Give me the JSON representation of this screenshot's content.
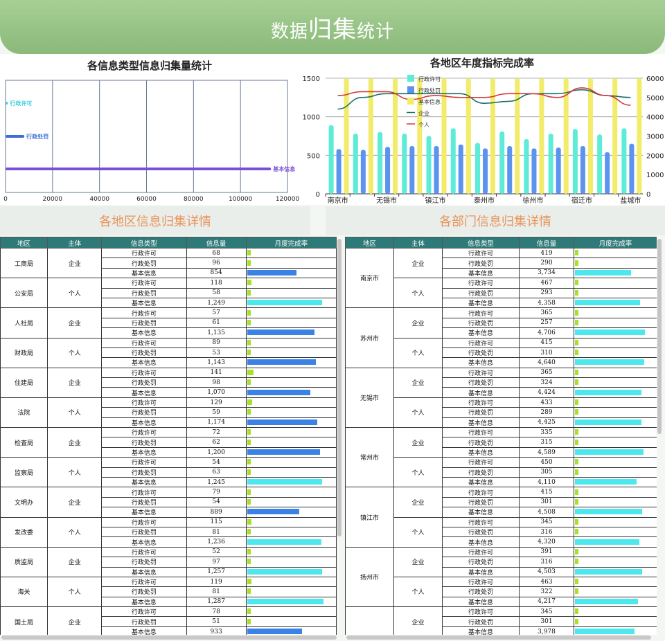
{
  "header": {
    "title_a": "数据",
    "title_b": "归集",
    "title_c": "统计"
  },
  "left_chart": {
    "title": "各信息类型信息归集量统计",
    "chart_data": {
      "type": "bar",
      "orientation": "horizontal",
      "categories": [
        "行政许可",
        "行政处罚",
        "基本信息"
      ],
      "values": [
        1000,
        8000,
        113000
      ],
      "colors": [
        "#3fd0e0",
        "#3a6fd6",
        "#7a4fd8"
      ],
      "x_ticks": [
        "0",
        "20000",
        "40000",
        "60000",
        "80000",
        "100000",
        "120000"
      ],
      "xlim": [
        0,
        120000
      ]
    }
  },
  "right_chart": {
    "title": "各地区年度指标完成率",
    "chart_data": {
      "type": "bar",
      "categories": [
        "南京市",
        "",
        "无锡市",
        "",
        "镇江市",
        "",
        "泰州市",
        "",
        "徐州市",
        "",
        "宿迁市",
        "",
        "盐城市"
      ],
      "x_labels": [
        "南京市",
        "无锡市",
        "镇江市",
        "泰州市",
        "徐州市",
        "宿迁市",
        "盐城市"
      ],
      "series": [
        {
          "name": "行政许可",
          "kind": "bar",
          "axis": "left",
          "color": "#5cecd8",
          "values": [
            890,
            780,
            800,
            780,
            750,
            850,
            660,
            810,
            710,
            780,
            840,
            770,
            850
          ]
        },
        {
          "name": "行政处罚",
          "kind": "bar",
          "axis": "left",
          "color": "#5b93ef",
          "values": [
            580,
            570,
            610,
            620,
            620,
            640,
            590,
            620,
            590,
            600,
            620,
            540,
            650
          ]
        },
        {
          "name": "基本信息",
          "kind": "bar",
          "axis": "right",
          "color": "#f2ec6a",
          "values": [
            6000,
            6000,
            6000,
            6000,
            6000,
            6000,
            6000,
            6000,
            6000,
            6000,
            6000,
            6000,
            6000
          ]
        },
        {
          "name": "企业",
          "kind": "line",
          "axis": "right",
          "color": "#1f6e6c",
          "values": [
            4400,
            5000,
            5200,
            5200,
            5200,
            5200,
            4700,
            4800,
            5200,
            5200,
            5400,
            5100,
            5000
          ]
        },
        {
          "name": "个人",
          "kind": "line",
          "axis": "right",
          "color": "#d43b3b",
          "values": [
            5100,
            5300,
            5300,
            4900,
            5100,
            5000,
            5000,
            5200,
            5200,
            5000,
            5500,
            5100,
            4600
          ]
        }
      ],
      "left_ticks": [
        "0",
        "500",
        "1000",
        "1500"
      ],
      "right_ticks": [
        "0",
        "1000",
        "2000",
        "3000",
        "4000",
        "5000",
        "6000"
      ],
      "ylim_left": [
        0,
        1500
      ],
      "ylim_right": [
        0,
        6000
      ],
      "legend": "top-left"
    }
  },
  "sections": {
    "left": "各地区信息归集详情",
    "right": "各部门信息归集详情"
  },
  "table_headers": [
    "地区",
    "主体",
    "信息类型",
    "信息量",
    "月度完成率"
  ],
  "left_table": [
    {
      "region": "工商局",
      "subject": "企业",
      "rows": [
        [
          "行政许可",
          "68",
          0.03
        ],
        [
          "行政处罚",
          "96",
          0.04
        ],
        [
          "基本信息",
          "854",
          0.65
        ]
      ]
    },
    {
      "region": "公安局",
      "subject": "个人",
      "rows": [
        [
          "行政许可",
          "118",
          0.06
        ],
        [
          "行政处罚",
          "58",
          0.02
        ],
        [
          "基本信息",
          "1,249",
          0.98
        ]
      ]
    },
    {
      "region": "人社局",
      "subject": "企业",
      "rows": [
        [
          "行政许可",
          "57",
          0.02
        ],
        [
          "行政处罚",
          "61",
          0.03
        ],
        [
          "基本信息",
          "1,135",
          0.88
        ]
      ]
    },
    {
      "region": "财政局",
      "subject": "个人",
      "rows": [
        [
          "行政许可",
          "89",
          0.04
        ],
        [
          "行政处罚",
          "53",
          0.02
        ],
        [
          "基本信息",
          "1,143",
          0.9
        ]
      ]
    },
    {
      "region": "住建局",
      "subject": "企业",
      "rows": [
        [
          "行政许可",
          "141",
          0.08
        ],
        [
          "行政处罚",
          "98",
          0.04
        ],
        [
          "基本信息",
          "1,070",
          0.83
        ]
      ]
    },
    {
      "region": "法院",
      "subject": "个人",
      "rows": [
        [
          "行政许可",
          "129",
          0.07
        ],
        [
          "行政处罚",
          "59",
          0.02
        ],
        [
          "基本信息",
          "1,174",
          0.92
        ]
      ]
    },
    {
      "region": "检查局",
      "subject": "企业",
      "rows": [
        [
          "行政许可",
          "72",
          0.03
        ],
        [
          "行政处罚",
          "62",
          0.03
        ],
        [
          "基本信息",
          "1,200",
          0.95
        ]
      ]
    },
    {
      "region": "监察局",
      "subject": "个人",
      "rows": [
        [
          "行政许可",
          "54",
          0.02
        ],
        [
          "行政处罚",
          "63",
          0.03
        ],
        [
          "基本信息",
          "1,245",
          0.98
        ]
      ]
    },
    {
      "region": "文明办",
      "subject": "企业",
      "rows": [
        [
          "行政许可",
          "79",
          0.03
        ],
        [
          "行政处罚",
          "54",
          0.02
        ],
        [
          "基本信息",
          "889",
          0.68
        ]
      ]
    },
    {
      "region": "发改委",
      "subject": "个人",
      "rows": [
        [
          "行政许可",
          "115",
          0.06
        ],
        [
          "行政处罚",
          "81",
          0.03
        ],
        [
          "基本信息",
          "1,236",
          0.97
        ]
      ]
    },
    {
      "region": "质监局",
      "subject": "企业",
      "rows": [
        [
          "行政许可",
          "52",
          0.02
        ],
        [
          "行政处罚",
          "97",
          0.04
        ],
        [
          "基本信息",
          "1,257",
          0.98
        ]
      ]
    },
    {
      "region": "海关",
      "subject": "个人",
      "rows": [
        [
          "行政许可",
          "119",
          0.06
        ],
        [
          "行政处罚",
          "81",
          0.03
        ],
        [
          "基本信息",
          "1,287",
          1.0
        ]
      ]
    },
    {
      "region": "国土局",
      "subject": "企业",
      "rows": [
        [
          "行政许可",
          "78",
          0.03
        ],
        [
          "行政处罚",
          "51",
          0.02
        ],
        [
          "基本信息",
          "933",
          0.72
        ]
      ]
    }
  ],
  "right_table": [
    {
      "region": "南京市",
      "groups": [
        {
          "subject": "企业",
          "rows": [
            [
              "行政许可",
              "419",
              0.03
            ],
            [
              "行政处罚",
              "290",
              0.03
            ],
            [
              "基本信息",
              "3,734",
              0.8
            ]
          ]
        },
        {
          "subject": "个人",
          "rows": [
            [
              "行政许可",
              "467",
              0.03
            ],
            [
              "行政处罚",
              "293",
              0.03
            ],
            [
              "基本信息",
              "4,358",
              0.93
            ]
          ]
        }
      ]
    },
    {
      "region": "苏州市",
      "groups": [
        {
          "subject": "企业",
          "rows": [
            [
              "行政许可",
              "365",
              0.03
            ],
            [
              "行政处罚",
              "257",
              0.03
            ],
            [
              "基本信息",
              "4,706",
              1.0
            ]
          ]
        },
        {
          "subject": "个人",
          "rows": [
            [
              "行政许可",
              "415",
              0.03
            ],
            [
              "行政处罚",
              "310",
              0.03
            ],
            [
              "基本信息",
              "4,640",
              0.99
            ]
          ]
        }
      ]
    },
    {
      "region": "无锡市",
      "groups": [
        {
          "subject": "企业",
          "rows": [
            [
              "行政许可",
              "365",
              0.03
            ],
            [
              "行政处罚",
              "324",
              0.03
            ],
            [
              "基本信息",
              "4,424",
              0.95
            ]
          ]
        },
        {
          "subject": "个人",
          "rows": [
            [
              "行政许可",
              "433",
              0.03
            ],
            [
              "行政处罚",
              "289",
              0.03
            ],
            [
              "基本信息",
              "4,425",
              0.95
            ]
          ]
        }
      ]
    },
    {
      "region": "常州市",
      "groups": [
        {
          "subject": "企业",
          "rows": [
            [
              "行政许可",
              "335",
              0.03
            ],
            [
              "行政处罚",
              "315",
              0.03
            ],
            [
              "基本信息",
              "4,589",
              0.98
            ]
          ]
        },
        {
          "subject": "个人",
          "rows": [
            [
              "行政许可",
              "450",
              0.03
            ],
            [
              "行政处罚",
              "305",
              0.03
            ],
            [
              "基本信息",
              "4,110",
              0.88
            ]
          ]
        }
      ]
    },
    {
      "region": "镇江市",
      "groups": [
        {
          "subject": "企业",
          "rows": [
            [
              "行政许可",
              "415",
              0.03
            ],
            [
              "行政处罚",
              "301",
              0.03
            ],
            [
              "基本信息",
              "4,508",
              0.96
            ]
          ]
        },
        {
          "subject": "个人",
          "rows": [
            [
              "行政许可",
              "345",
              0.03
            ],
            [
              "行政处罚",
              "316",
              0.03
            ],
            [
              "基本信息",
              "4,320",
              0.92
            ]
          ]
        }
      ]
    },
    {
      "region": "扬州市",
      "groups": [
        {
          "subject": "企业",
          "rows": [
            [
              "行政许可",
              "391",
              0.03
            ],
            [
              "行政处罚",
              "316",
              0.03
            ],
            [
              "基本信息",
              "4,503",
              0.96
            ]
          ]
        },
        {
          "subject": "个人",
          "rows": [
            [
              "行政许可",
              "463",
              0.03
            ],
            [
              "行政处罚",
              "322",
              0.03
            ],
            [
              "基本信息",
              "4,217",
              0.9
            ]
          ]
        }
      ]
    },
    {
      "region": "",
      "groups": [
        {
          "subject": "企业",
          "rows": [
            [
              "行政许可",
              "345",
              0.03
            ],
            [
              "行政处罚",
              "301",
              0.03
            ],
            [
              "基本信息",
              "3,978",
              0.85
            ]
          ]
        }
      ]
    }
  ],
  "colors": {
    "bar_small": "#a8e02a",
    "bar_blue": "#3b82e6",
    "bar_cyan": "#4de8ee"
  }
}
